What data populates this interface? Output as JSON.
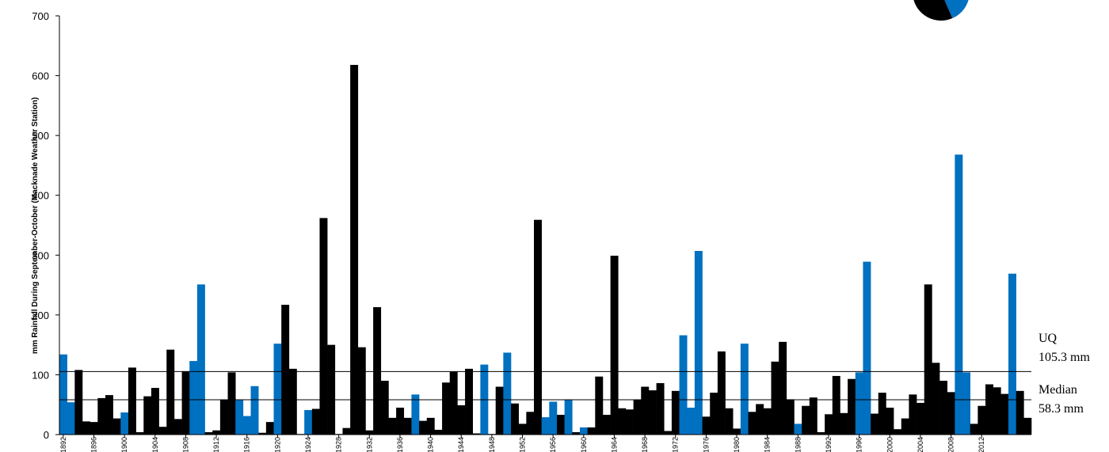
{
  "chart_data": {
    "type": "bar",
    "ylabel": "mm Rainfall During September-October (Macknade Weather Station)",
    "ylim": [
      0,
      700
    ],
    "yticks": [
      0,
      100,
      200,
      300,
      400,
      500,
      600,
      700
    ],
    "grid": false,
    "x_tick_labels": [
      "1892",
      "1896",
      "1900",
      "1904",
      "1908",
      "1912",
      "1916",
      "1920",
      "1924",
      "1928",
      "1932",
      "1936",
      "1940",
      "1944",
      "1948",
      "1952",
      "1956",
      "1960",
      "1964",
      "1968",
      "1972",
      "1976",
      "1980",
      "1984",
      "1988",
      "1992",
      "1996",
      "2000",
      "2004",
      "2008",
      "2012"
    ],
    "series_colors": {
      "blue": "#0070c0",
      "black": "#000000"
    },
    "values": [
      134,
      54,
      108,
      22,
      21,
      61,
      66,
      27,
      37,
      112,
      4,
      64,
      78,
      13,
      142,
      26,
      106,
      123,
      251,
      4,
      7,
      58,
      104,
      58,
      31,
      81,
      3,
      21,
      152,
      217,
      110,
      1,
      41,
      43,
      362,
      150,
      1,
      11,
      618,
      146,
      7,
      213,
      90,
      28,
      45,
      28,
      67,
      23,
      28,
      8,
      87,
      105,
      49,
      110,
      2,
      117,
      1,
      80,
      137,
      52,
      18,
      38,
      359,
      29,
      55,
      33,
      58,
      4,
      12,
      12,
      97,
      33,
      299,
      44,
      42,
      58,
      80,
      74,
      86,
      6,
      73,
      166,
      45,
      307,
      30,
      70,
      139,
      44,
      10,
      152,
      38,
      51,
      44,
      122,
      155,
      59,
      18,
      48,
      62,
      4,
      34,
      98,
      36,
      93,
      104,
      289,
      35,
      70,
      45,
      9,
      27,
      67,
      53,
      251,
      120,
      90,
      71,
      468,
      104,
      18,
      48,
      84,
      79,
      68,
      269,
      73,
      28
    ],
    "colors": [
      "blue",
      "blue",
      "black",
      "black",
      "black",
      "black",
      "black",
      "black",
      "blue",
      "black",
      "black",
      "black",
      "black",
      "black",
      "black",
      "black",
      "black",
      "blue",
      "blue",
      "black",
      "black",
      "black",
      "black",
      "blue",
      "blue",
      "blue",
      "black",
      "black",
      "blue",
      "black",
      "black",
      "black",
      "blue",
      "black",
      "black",
      "black",
      "black",
      "black",
      "black",
      "black",
      "black",
      "black",
      "black",
      "black",
      "black",
      "black",
      "blue",
      "black",
      "black",
      "black",
      "black",
      "black",
      "black",
      "black",
      "black",
      "blue",
      "black",
      "black",
      "blue",
      "black",
      "black",
      "black",
      "black",
      "blue",
      "blue",
      "black",
      "blue",
      "black",
      "blue",
      "black",
      "black",
      "black",
      "black",
      "black",
      "black",
      "black",
      "black",
      "black",
      "black",
      "black",
      "black",
      "blue",
      "blue",
      "blue",
      "black",
      "black",
      "black",
      "black",
      "black",
      "blue",
      "black",
      "black",
      "black",
      "black",
      "black",
      "black",
      "blue",
      "black",
      "black",
      "black",
      "black",
      "black",
      "black",
      "black",
      "blue",
      "blue",
      "black",
      "black",
      "black",
      "black",
      "black",
      "black",
      "black",
      "black",
      "black",
      "black",
      "black",
      "blue",
      "blue",
      "black",
      "black",
      "black",
      "black",
      "black",
      "blue",
      "black",
      "black"
    ],
    "reference_lines": [
      {
        "name": "UQ",
        "value": 105.3,
        "label_line1": "UQ",
        "label_line2": "105.3 mm"
      },
      {
        "name": "Median",
        "value": 58.3,
        "label_line1": "Median",
        "label_line2": "58.3 mm"
      }
    ],
    "legend_pie": {
      "colors": [
        "black",
        "blue"
      ]
    }
  }
}
